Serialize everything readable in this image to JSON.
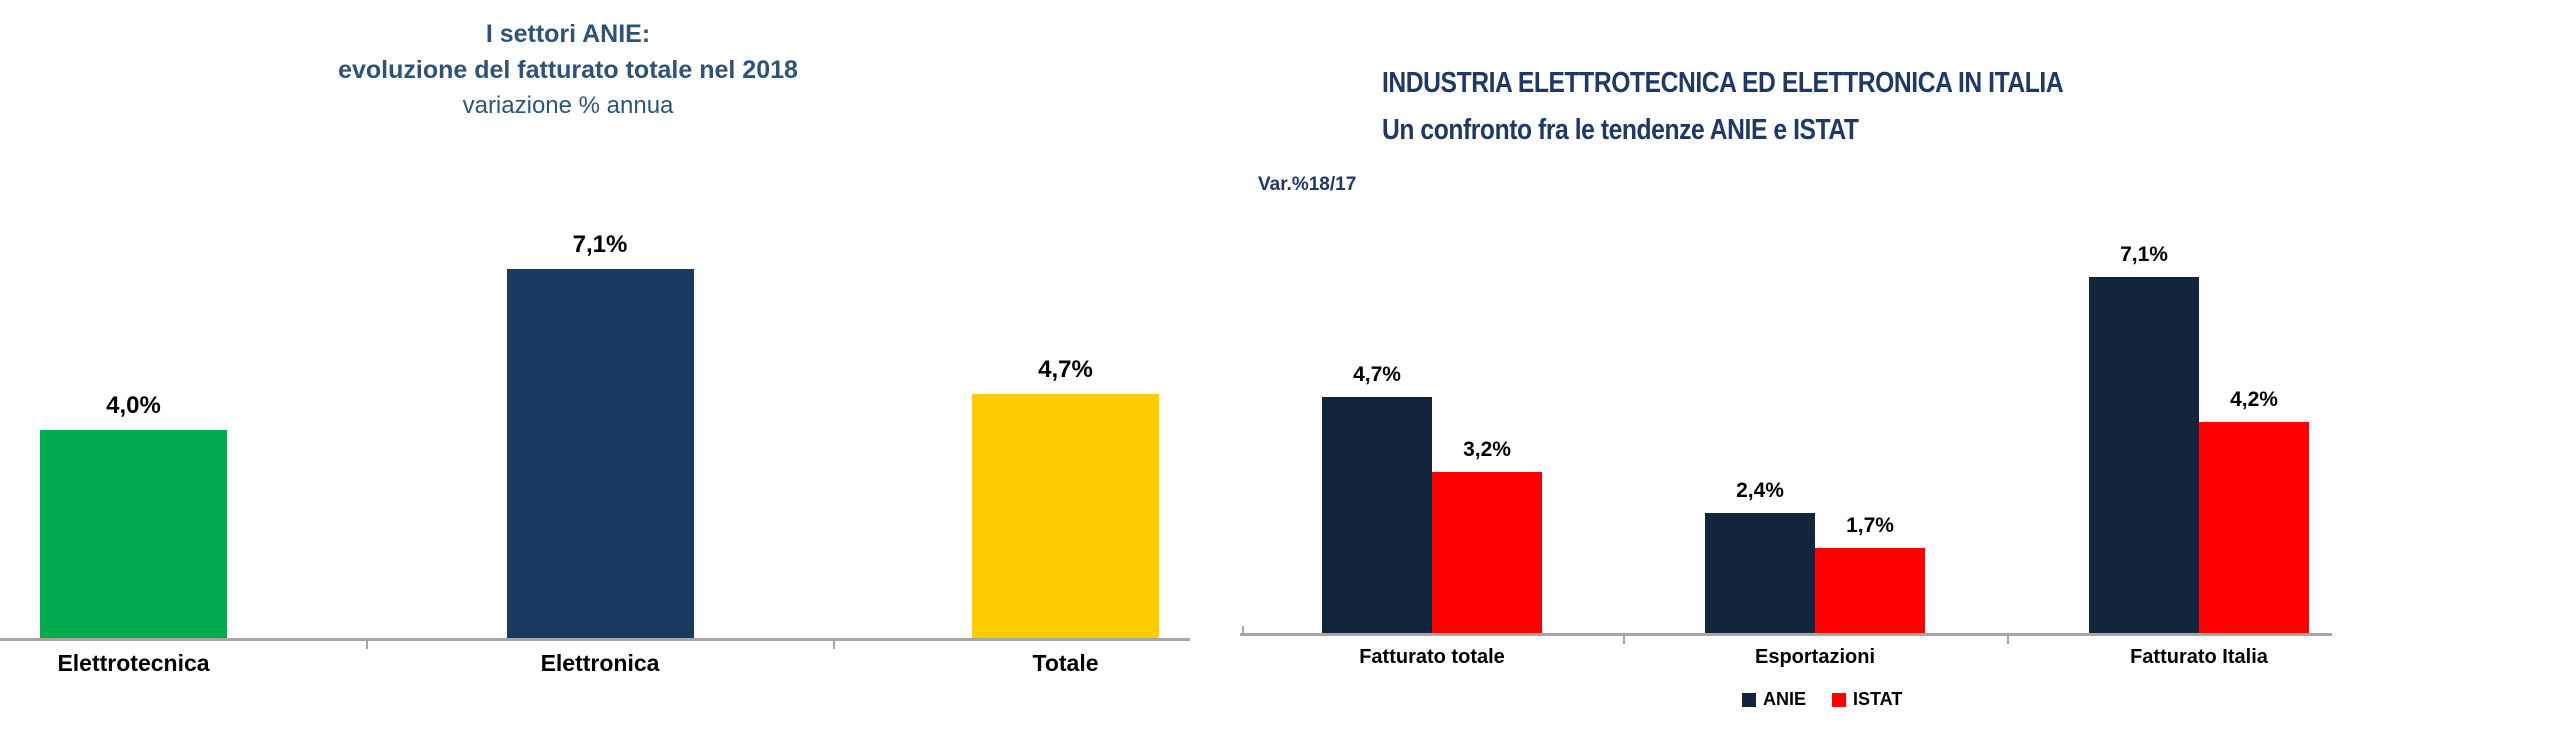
{
  "page": {
    "background": "#ffffff",
    "axis_color": "#A6A6A6",
    "label_color": "#000000"
  },
  "chart_data": [
    {
      "type": "bar",
      "title": "I settori ANIE: evoluzione del fatturato totale nel 2018",
      "title_lines": [
        "I settori ANIE:",
        "evoluzione del fatturato totale nel 2018"
      ],
      "subtitle": "variazione % annua",
      "title_color": "#2E5377",
      "categories": [
        "Elettrotecnica",
        "Elettronica",
        "Totale"
      ],
      "values": [
        4.0,
        7.1,
        4.7
      ],
      "value_labels": [
        "4,0%",
        "7,1%",
        "4,7%"
      ],
      "bar_colors": [
        "#00AB4E",
        "#1A3A5F",
        "#FFCC00"
      ],
      "xlabel": "",
      "ylabel": "",
      "ylim": [
        0,
        7.7
      ],
      "grid": false,
      "legend": null,
      "axis_color": "#A6A6A6",
      "data_label_color": "#000000"
    },
    {
      "type": "bar",
      "title": "INDUSTRIA ELETTROTECNICA ED ELETTRONICA IN ITALIA Un confronto fra le tendenze ANIE e ISTAT",
      "title_lines": [
        "INDUSTRIA ELETTROTECNICA ED ELETTRONICA IN ITALIA",
        "Un confronto fra le tendenze ANIE e ISTAT"
      ],
      "title_color": "#1F3864",
      "axis_note": "Var.%18/17",
      "categories": [
        "Fatturato totale",
        "Esportazioni",
        "Fatturato Italia"
      ],
      "series": [
        {
          "name": "ANIE",
          "color": "#13243D",
          "values": [
            4.7,
            2.4,
            7.1
          ],
          "value_labels": [
            "4,7%",
            "2,4%",
            "7,1%"
          ]
        },
        {
          "name": "ISTAT",
          "color": "#FE0000",
          "values": [
            3.2,
            1.7,
            4.2
          ],
          "value_labels": [
            "3,2%",
            "1,7%",
            "4,2%"
          ]
        }
      ],
      "xlabel": "",
      "ylabel": "",
      "ylim": [
        0,
        7.7
      ],
      "grid": false,
      "legend_position": "bottom",
      "axis_color": "#A6A6A6",
      "data_label_color": "#000000"
    }
  ]
}
